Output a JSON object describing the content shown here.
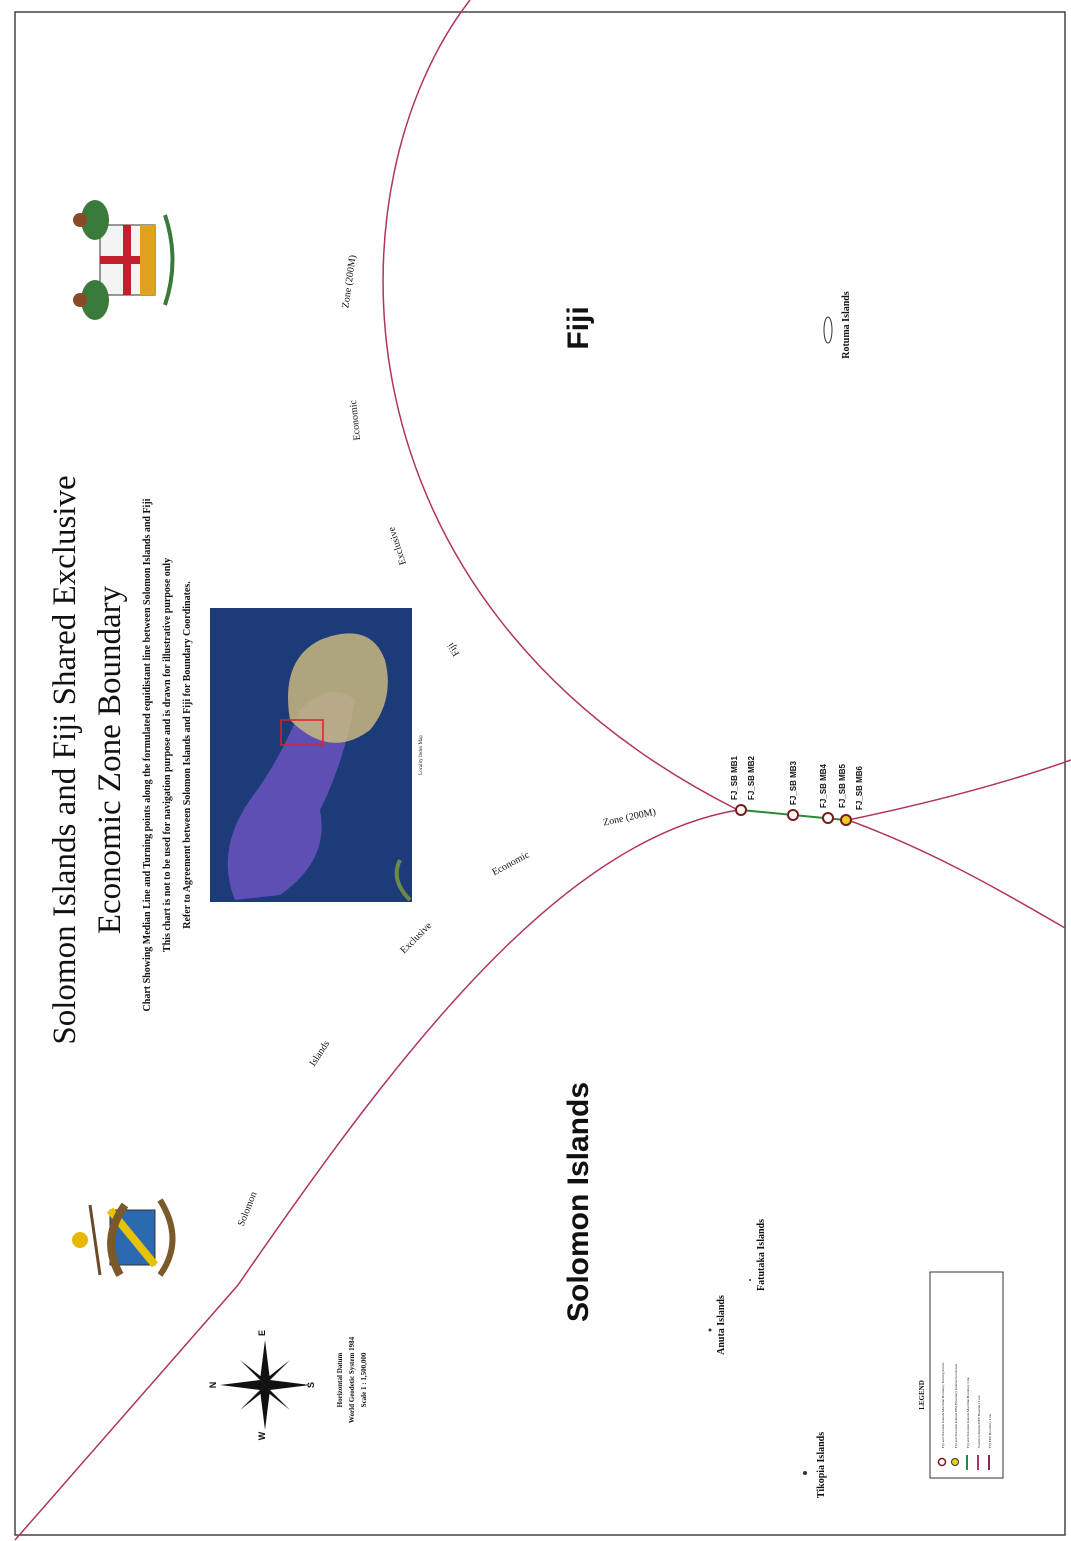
{
  "header": {
    "title_line1": "Solomon Islands and Fiji Shared Exclusive",
    "title_line2": "Economic Zone Boundary",
    "notes": [
      "Chart Showing Median Line and Turning points along the formulated equidistant line between Solomon Islands and Fiji",
      "This chart is not to be used for navigation purpose and is drawn for illustrative purpose only",
      "Refer to Agreement between Solomon Islands and Fiji for Boundary Coordinates."
    ]
  },
  "regions": {
    "fiji": "Fiji",
    "solomon": "Solomon Islands"
  },
  "islands": [
    "Rotuma Islands",
    "Anuta Islands",
    "Fatutaka Islands",
    "Tikopia Islands"
  ],
  "boundary_labels": {
    "solomon": [
      "Solomon",
      "Islands",
      "Exclusive",
      "Economic",
      "Zone (200M)"
    ],
    "fiji": [
      "Fiji",
      "Exclusive",
      "Economic",
      "Zone (200M)"
    ]
  },
  "turning_points": [
    "FJ_SB MB1",
    "FJ_SB MB2",
    "FJ_SB MB3",
    "FJ_SB MB4",
    "FJ_SB MB5",
    "FJ_SB MB6"
  ],
  "inset": {
    "label": "Locality Index Map"
  },
  "datum": [
    "Horizontal Datum",
    "World Geodetic System 1984",
    "Scale 1 : 1,500,000"
  ],
  "compass": {
    "n": "N",
    "e": "E",
    "s": "S",
    "w": "W"
  },
  "legend": {
    "title": "LEGEND",
    "items": [
      "Fiji and Solomon Islands Maritime Boundary Turning Points",
      "Fiji and Solomon Islands EEZ Boundary Intersection Points",
      "Fiji and Solomon Islands Maritime Boundary Line",
      "Solomon Islands EEZ Boundary Line",
      "Fiji EEZ Boundary Line"
    ]
  }
}
